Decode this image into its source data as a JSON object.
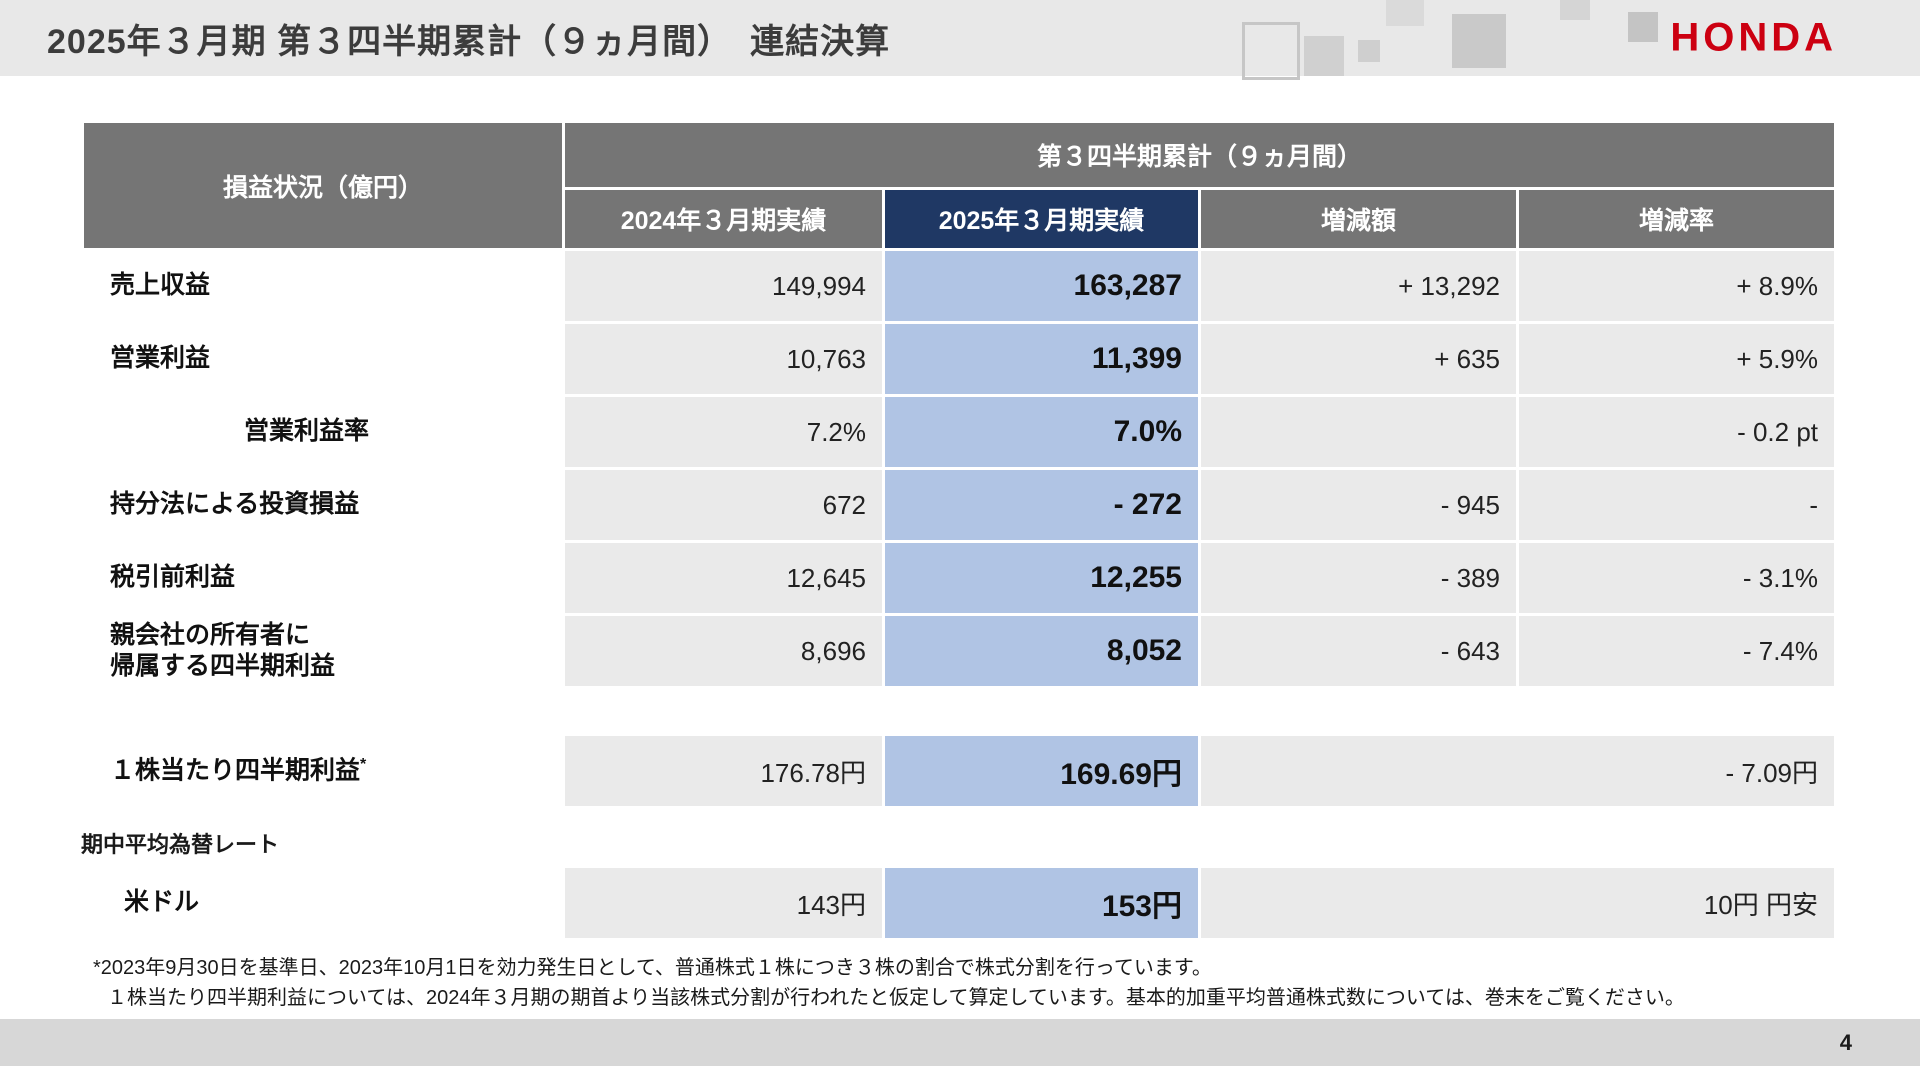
{
  "page": {
    "title": "2025年３月期 第３四半期累計（９ヵ月間）　連結決算",
    "logo": "HONDA",
    "page_number": "4"
  },
  "table": {
    "corner_header": "損益状況（億円）",
    "group_header": "第３四半期累計（９ヵ月間）",
    "col_headers": [
      "2024年３月期実績",
      "2025年３月期実績",
      "増減額",
      "増減率"
    ],
    "rows": [
      {
        "label": "売上収益",
        "fy2024": "149,994",
        "fy2025": "163,287",
        "change": "+ 13,292",
        "rate": "+ 8.9%"
      },
      {
        "label": "営業利益",
        "fy2024": "10,763",
        "fy2025": "11,399",
        "change": "+ 635",
        "rate": "+ 5.9%"
      },
      {
        "label": "営業利益率",
        "fy2024": "7.2%",
        "fy2025": "7.0%",
        "change": "",
        "rate": "- 0.2 pt"
      },
      {
        "label": "持分法による投資損益",
        "fy2024": "672",
        "fy2025": "- 272",
        "change": "- 945",
        "rate": "-"
      },
      {
        "label": "税引前利益",
        "fy2024": "12,645",
        "fy2025": "12,255",
        "change": "- 389",
        "rate": "- 3.1%"
      },
      {
        "label": "親会社の所有者に\n帰属する四半期利益",
        "fy2024": "8,696",
        "fy2025": "8,052",
        "change": "- 643",
        "rate": "- 7.4%"
      }
    ]
  },
  "eps_row": {
    "label": "１株当たり四半期利益",
    "label_superscript": "*",
    "fy2024": "176.78円",
    "fy2025": "169.69円",
    "rate": "- 7.09円"
  },
  "fx": {
    "section_label": "期中平均為替レート",
    "row": {
      "label": "米ドル",
      "fy2024": "143円",
      "fy2025": "153円",
      "rate": "10円 円安"
    }
  },
  "footnotes": [
    "*2023年9月30日を基準日、2023年10月1日を効力発生日として、普通株式１株につき３株の割合で株式分割を行っています。",
    "１株当たり四半期利益については、2024年３月期の期首より当該株式分割が行われたと仮定して算定しています。基本的加重平均普通株式数については、巻末をご覧ください。"
  ],
  "colors": {
    "honda_red": "#cc0011",
    "topbar_gray": "#e8e8e8",
    "header_gray": "#757575",
    "accent_navy": "#1f3864",
    "accent_blue_cell": "#b0c4e4",
    "cell_gray": "#eaeaea",
    "footer_gray": "#d7d7d7"
  }
}
